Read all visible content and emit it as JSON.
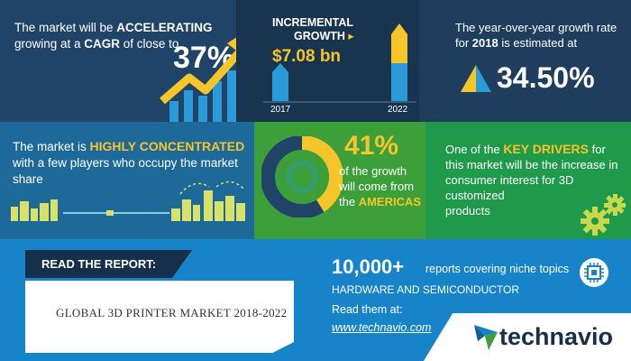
{
  "panel1": {
    "line1a": "The market will be ",
    "line1b": "ACCELERATING",
    "line2a": "growing at a ",
    "line2b": "CAGR",
    "line2c": " of close to",
    "percent": "37%"
  },
  "panel2": {
    "title_line1": "INCREMENTAL",
    "title_line2": "GROWTH",
    "value": "$7.08 bn",
    "year_start": "2017",
    "year_end": "2022"
  },
  "panel3": {
    "line1": "The year-over-year growth rate",
    "line2a": "for ",
    "line2b": "2018",
    "line2c": " is estimated at",
    "value": "34.50%"
  },
  "panel4": {
    "line1a": "The market is ",
    "line1b": "HIGHLY CONCENTRATED",
    "line2": "with a few players who occupy the market",
    "line3": "share"
  },
  "panel5": {
    "percent": "41%",
    "line1": "of the growth",
    "line2": "will come from",
    "line3": "the ",
    "region": "AMERICAS",
    "share": 0.41
  },
  "panel6": {
    "line1a": "One of the ",
    "line1b": "KEY DRIVERS",
    "line1c": " for",
    "line2": "this market will be the increase in",
    "line3": "consumer interest for 3D customized",
    "line4": "products"
  },
  "report": {
    "label": "READ THE REPORT:",
    "title": "GLOBAL 3D PRINTER MARKET 2018-2022",
    "count": "10,000+",
    "count_desc": "reports covering niche topics",
    "category": "HARDWARE AND SEMICONDUCTOR",
    "read_at": "Read them at:",
    "url": "www.technavio.com"
  },
  "brand": {
    "name": "technavio"
  },
  "colors": {
    "yellow": "#f5c52a",
    "blue": "#2a9bd8",
    "green": "#3d9f3a"
  }
}
